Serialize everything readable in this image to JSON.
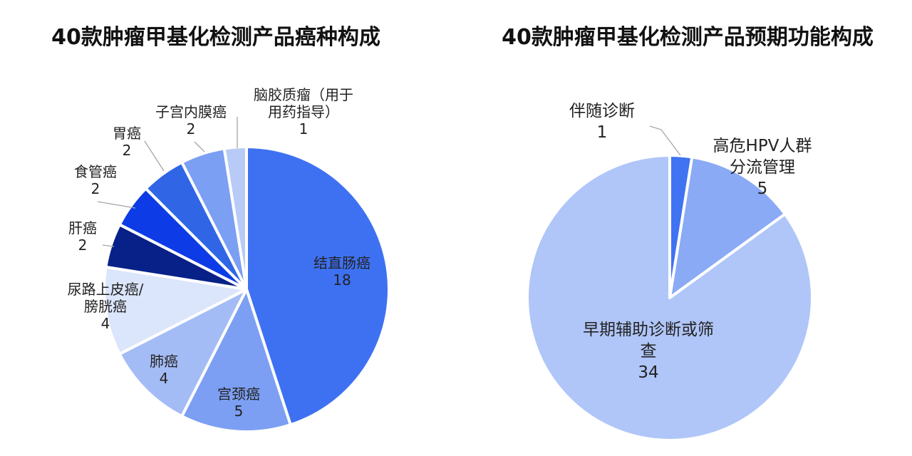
{
  "chart_data": [
    {
      "type": "pie",
      "title": "40款肿瘤甲基化检测产品癌种构成",
      "slices": [
        {
          "label": [
            "结直肠癌"
          ],
          "value": 18,
          "color": "#3e71f2",
          "label_pos": "inside"
        },
        {
          "label": [
            "宫颈癌"
          ],
          "value": 5,
          "color": "#7c9ff3",
          "label_pos": "inside"
        },
        {
          "label": [
            "肺癌"
          ],
          "value": 4,
          "color": "#a4bcf5",
          "label_pos": "outside"
        },
        {
          "label": [
            "尿路上皮癌/",
            "膀胱癌"
          ],
          "value": 4,
          "color": "#dbe5fb",
          "label_pos": "outside"
        },
        {
          "label": [
            "肝癌"
          ],
          "value": 2,
          "color": "#072188",
          "label_pos": "outside"
        },
        {
          "label": [
            "食管癌"
          ],
          "value": 2,
          "color": "#0d3ce6",
          "label_pos": "outside"
        },
        {
          "label": [
            "胃癌"
          ],
          "value": 2,
          "color": "#3066e6",
          "label_pos": "outside"
        },
        {
          "label": [
            "子宫内膜癌"
          ],
          "value": 2,
          "color": "#7b9ff2",
          "label_pos": "outside"
        },
        {
          "label": [
            "脑胶质瘤（用于",
            "用药指导）"
          ],
          "value": 1,
          "color": "#b8cbf6",
          "label_pos": "outside"
        }
      ]
    },
    {
      "type": "pie",
      "title": "40款肿瘤甲基化检测产品预期功能构成",
      "slices": [
        {
          "label": [
            "伴随诊断"
          ],
          "value": 1,
          "color": "#3f73f2",
          "label_pos": "outside"
        },
        {
          "label": [
            "高危HPV人群",
            "分流管理"
          ],
          "value": 5,
          "color": "#8aaaf5",
          "label_pos": "outside"
        },
        {
          "label": [
            "早期辅助诊断或筛",
            "查"
          ],
          "value": 34,
          "color": "#b0c6f8",
          "label_pos": "inside"
        }
      ]
    }
  ]
}
